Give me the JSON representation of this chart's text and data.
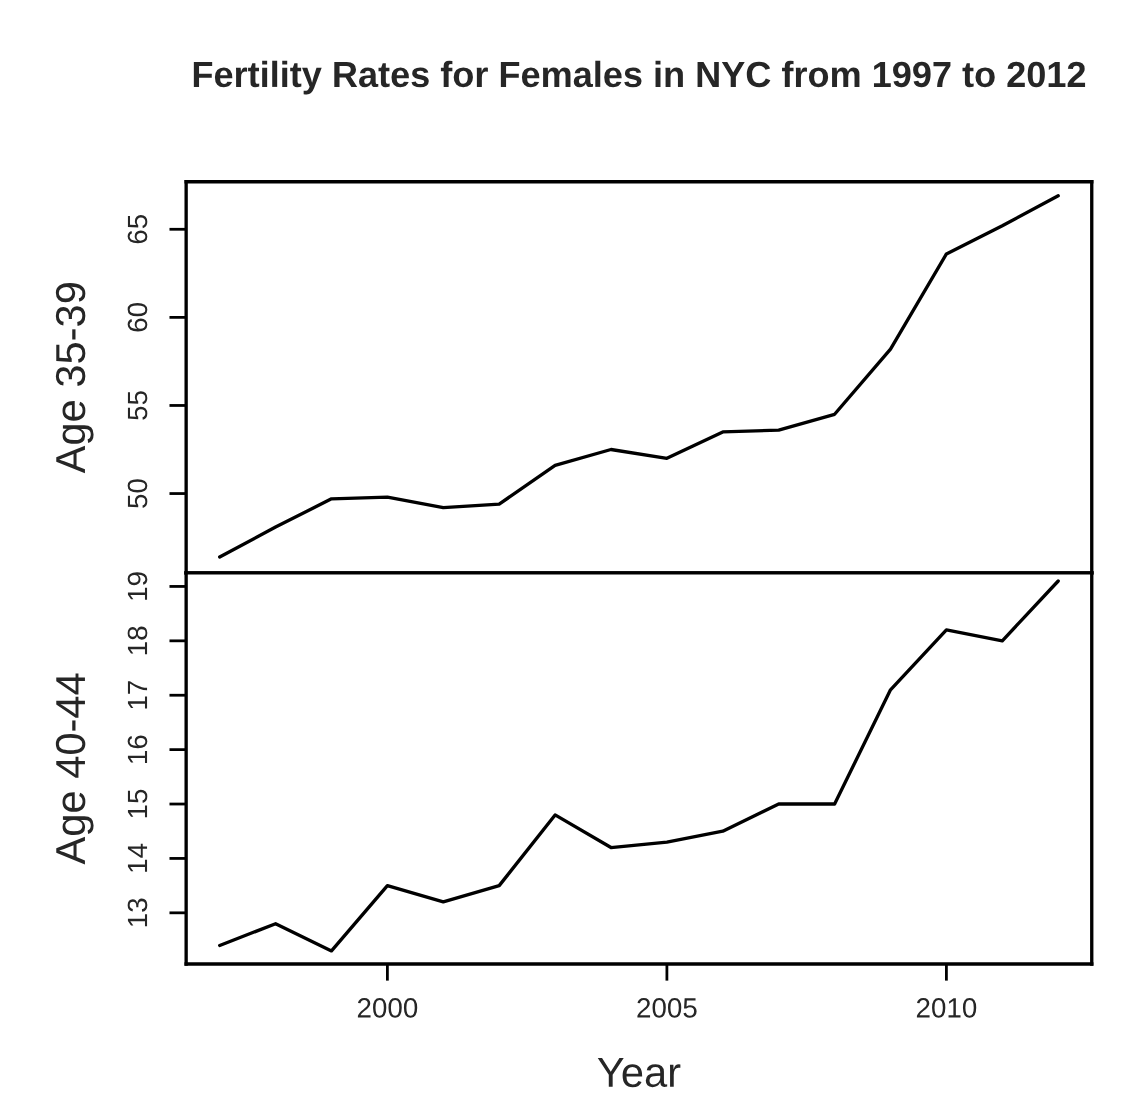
{
  "chart_data": [
    {
      "type": "line",
      "title": "Fertility Rates for Females in NYC from 1997 to 2012",
      "ylabel": "Age 35-39",
      "x": [
        1997,
        1998,
        1999,
        2000,
        2001,
        2002,
        2003,
        2004,
        2005,
        2006,
        2007,
        2008,
        2009,
        2010,
        2011,
        2012
      ],
      "series": [
        {
          "color": "#000000",
          "values": [
            46.4,
            48.1,
            49.7,
            49.8,
            49.2,
            49.4,
            51.6,
            52.5,
            52.0,
            53.5,
            53.6,
            54.5,
            58.2,
            63.6,
            65.2,
            66.9
          ]
        }
      ],
      "xlim": [
        1996.4,
        2012.6
      ],
      "ylim": [
        45.5,
        67.7
      ],
      "yticks": [
        50,
        55,
        60,
        65
      ],
      "tick_labels": "y"
    },
    {
      "type": "line",
      "xlabel": "Year",
      "ylabel": "Age 40-44",
      "x": [
        1997,
        1998,
        1999,
        2000,
        2001,
        2002,
        2003,
        2004,
        2005,
        2006,
        2007,
        2008,
        2009,
        2010,
        2011,
        2012
      ],
      "series": [
        {
          "color": "#000000",
          "values": [
            12.4,
            12.8,
            12.3,
            13.5,
            13.2,
            13.5,
            14.8,
            14.2,
            14.3,
            14.5,
            15.0,
            15.0,
            17.1,
            18.2,
            18.0,
            19.1
          ]
        }
      ],
      "xlim": [
        1996.4,
        2012.6
      ],
      "xticks": [
        2000,
        2005,
        2010
      ],
      "ylim": [
        12.06,
        19.25
      ],
      "yticks": [
        13,
        14,
        15,
        16,
        17,
        18,
        19
      ]
    }
  ]
}
